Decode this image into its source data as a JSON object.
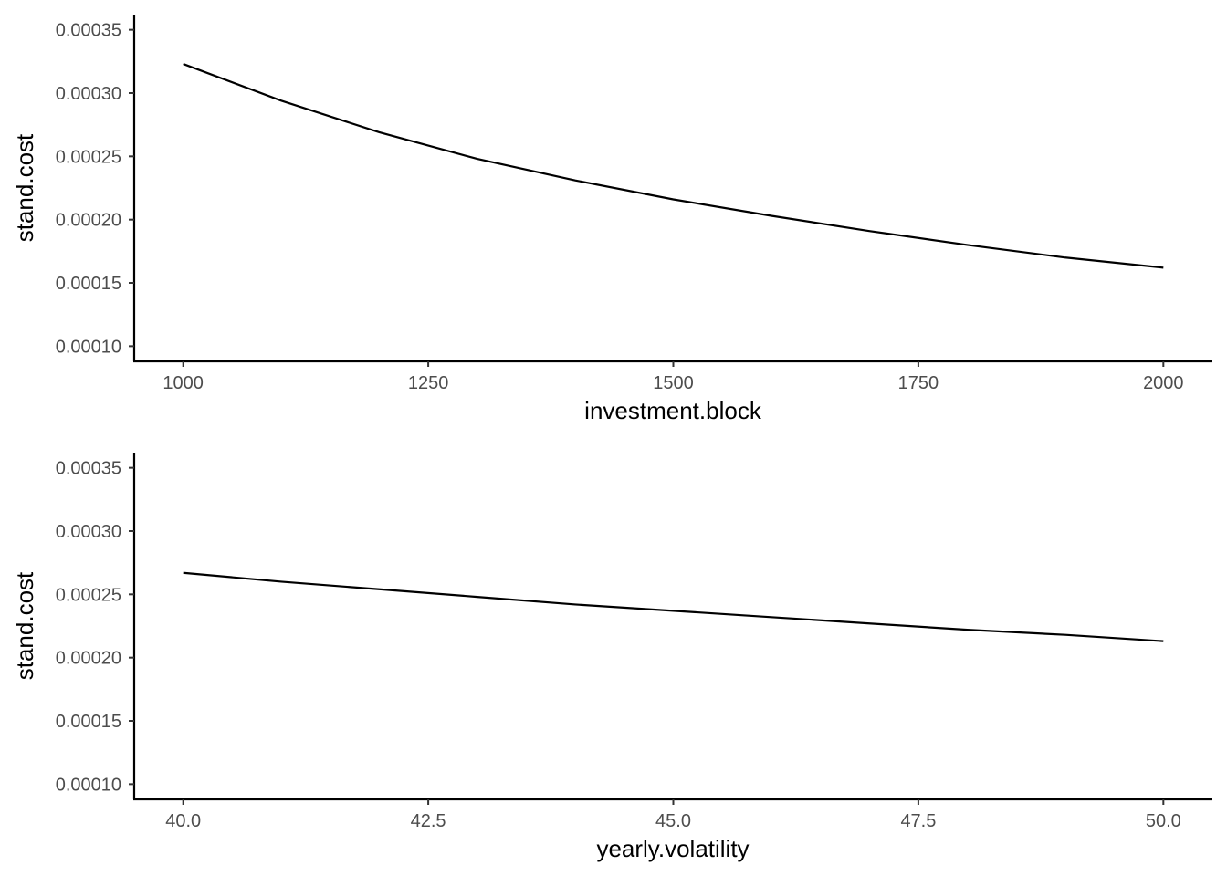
{
  "chart_data": [
    {
      "type": "line",
      "title": "",
      "xlabel": "investment.block",
      "ylabel": "stand.cost",
      "xlim": [
        950,
        2050
      ],
      "ylim": [
        8.8e-05,
        0.000362
      ],
      "xticks": [
        1000,
        1250,
        1500,
        1750,
        2000
      ],
      "xtick_labels": [
        "1000",
        "1250",
        "1500",
        "1750",
        "2000"
      ],
      "yticks": [
        0.0001,
        0.00015,
        0.0002,
        0.00025,
        0.0003,
        0.00035
      ],
      "ytick_labels": [
        "0.00010",
        "0.00015",
        "0.00020",
        "0.00025",
        "0.00030",
        "0.00035"
      ],
      "grid": false,
      "series": [
        {
          "name": "stand.cost",
          "x": [
            1000,
            1100,
            1200,
            1300,
            1400,
            1500,
            1600,
            1700,
            1800,
            1900,
            2000
          ],
          "values": [
            0.000323,
            0.000294,
            0.000269,
            0.000248,
            0.000231,
            0.000216,
            0.000203,
            0.000191,
            0.00018,
            0.00017,
            0.000162
          ]
        }
      ]
    },
    {
      "type": "line",
      "title": "",
      "xlabel": "yearly.volatility",
      "ylabel": "stand.cost",
      "xlim": [
        39.5,
        50.5
      ],
      "ylim": [
        8.8e-05,
        0.000362
      ],
      "xticks": [
        40,
        42.5,
        45,
        47.5,
        50
      ],
      "xtick_labels": [
        "40.0",
        "42.5",
        "45.0",
        "47.5",
        "50.0"
      ],
      "yticks": [
        0.0001,
        0.00015,
        0.0002,
        0.00025,
        0.0003,
        0.00035
      ],
      "ytick_labels": [
        "0.00010",
        "0.00015",
        "0.00020",
        "0.00025",
        "0.00030",
        "0.00035"
      ],
      "grid": false,
      "series": [
        {
          "name": "stand.cost",
          "x": [
            40,
            41,
            42,
            43,
            44,
            45,
            46,
            47,
            48,
            49,
            50
          ],
          "values": [
            0.000267,
            0.00026,
            0.000254,
            0.000248,
            0.000242,
            0.000237,
            0.000232,
            0.000227,
            0.000222,
            0.000218,
            0.000213
          ]
        }
      ]
    }
  ]
}
